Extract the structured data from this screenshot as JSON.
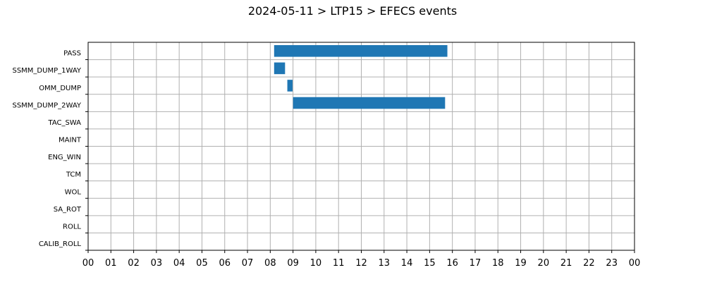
{
  "chart_data": {
    "type": "bar",
    "title": "2024-05-11 > LTP15 > EFECS events",
    "xlabel": "",
    "ylabel": "",
    "xlim": [
      0,
      24
    ],
    "x_tick_labels": [
      "00",
      "01",
      "02",
      "03",
      "04",
      "05",
      "06",
      "07",
      "08",
      "09",
      "10",
      "11",
      "12",
      "13",
      "14",
      "15",
      "16",
      "17",
      "18",
      "19",
      "20",
      "21",
      "22",
      "23",
      "00"
    ],
    "categories": [
      "PASS",
      "SSMM_DUMP_1WAY",
      "OMM_DUMP",
      "SSMM_DUMP_2WAY",
      "TAC_SWA",
      "MAINT",
      "ENG_WIN",
      "TCM",
      "WOL",
      "SA_ROT",
      "ROLL",
      "CALIB_ROLL"
    ],
    "grid": true,
    "color": "#1f77b4",
    "intervals": [
      {
        "category": "PASS",
        "start": 8.17,
        "end": 15.78
      },
      {
        "category": "SSMM_DUMP_1WAY",
        "start": 8.17,
        "end": 8.65
      },
      {
        "category": "OMM_DUMP",
        "start": 8.75,
        "end": 8.98
      },
      {
        "category": "SSMM_DUMP_2WAY",
        "start": 9.0,
        "end": 15.68
      }
    ]
  }
}
